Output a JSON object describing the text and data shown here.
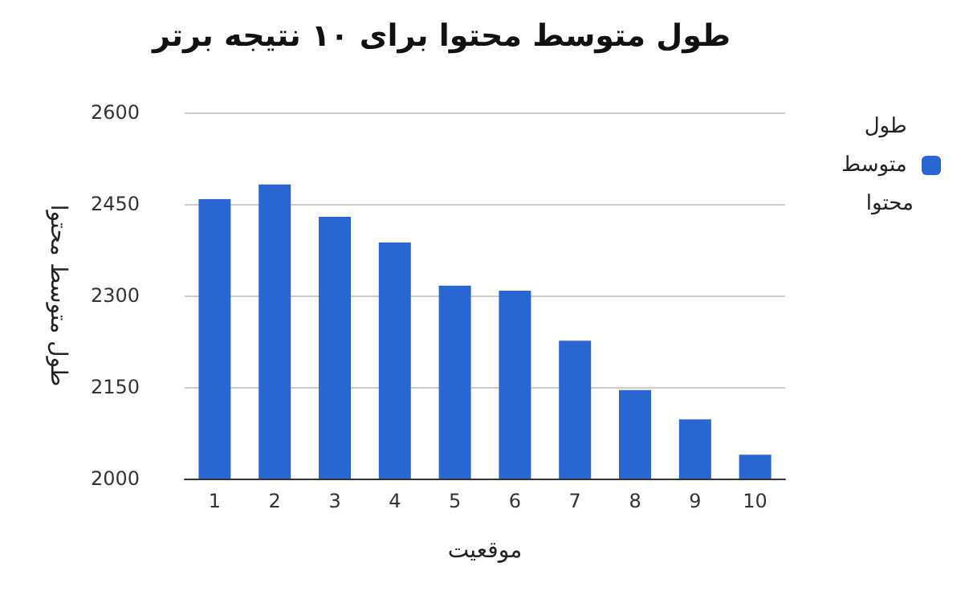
{
  "chart_data": {
    "type": "bar",
    "title": "طول متوسط محتوا برای ۱۰ نتیجه برتر",
    "xlabel": "موقعیت",
    "ylabel": "طول متوسط محتوا",
    "categories": [
      "1",
      "2",
      "3",
      "4",
      "5",
      "6",
      "7",
      "8",
      "9",
      "10"
    ],
    "series": [
      {
        "name": "طول متوسط محتوا",
        "color": "#2a66d2",
        "values": [
          2458,
          2482,
          2429,
          2387,
          2316,
          2308,
          2226,
          2145,
          2097,
          2039
        ]
      }
    ],
    "ylim": [
      2000,
      2600
    ],
    "yticks": [
      2000,
      2150,
      2300,
      2450,
      2600
    ],
    "grid": "y",
    "legend": "top right"
  }
}
